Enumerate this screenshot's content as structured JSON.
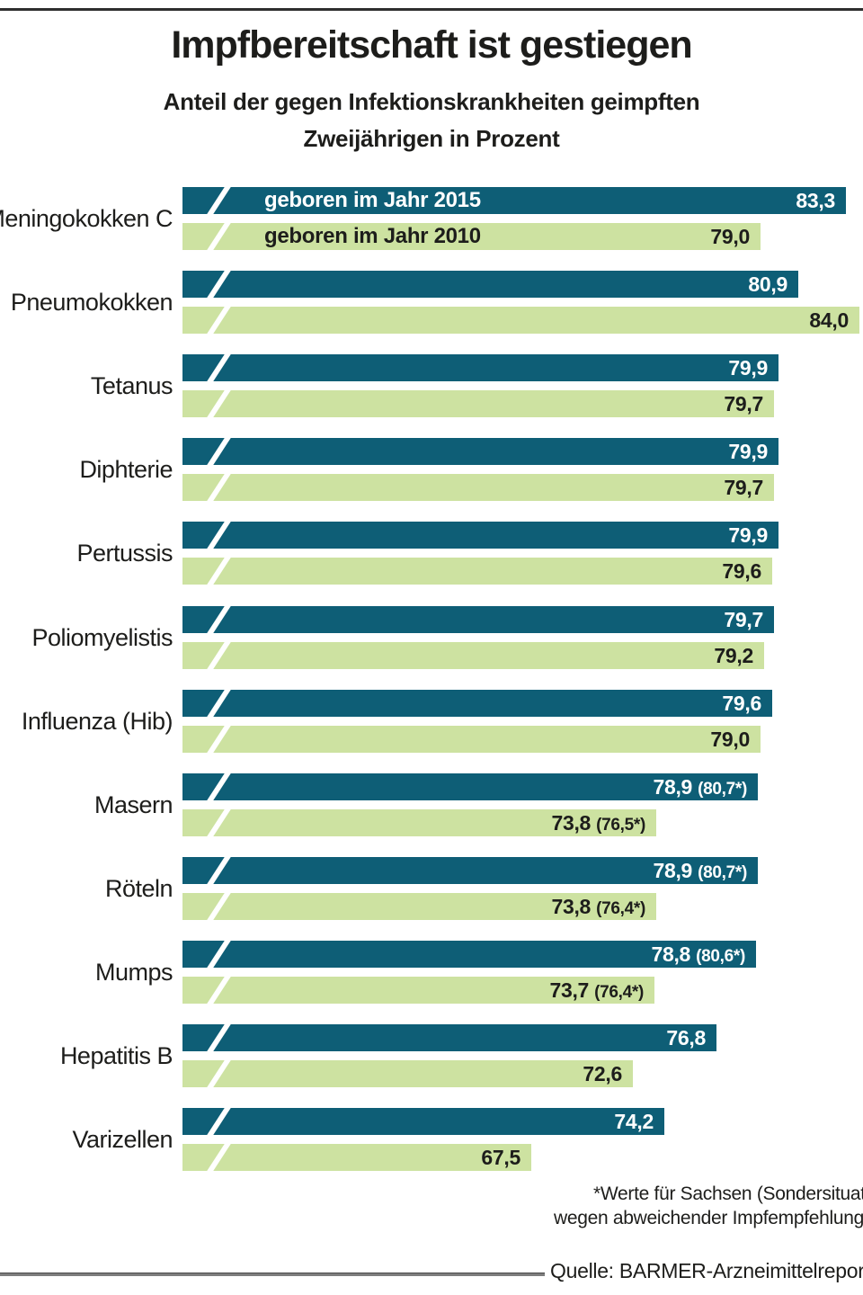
{
  "page": {
    "title": "Impfbereitschaft ist gestiegen",
    "subtitle_line1": "Anteil der gegen Infektionskrankheiten geimpften",
    "subtitle_line2": "Zweijährigen in Prozent",
    "footnote_line1": "*Werte für Sachsen (Sondersituat",
    "footnote_line2": "wegen abweichender Impfempfehlung",
    "source": "Quelle: BARMER-Arzneimittelreport"
  },
  "chart_data": {
    "type": "bar",
    "orientation": "horizontal",
    "title": "Impfbereitschaft ist gestiegen",
    "subtitle": "Anteil der gegen Infektionskrankheiten geimpften Zweijährigen in Prozent",
    "unit": "Prozent",
    "axis": {
      "min": 50,
      "max": 84.2,
      "broken_axis_marker": true,
      "gridlines": false,
      "tick_labels_shown": false
    },
    "legend_position": "inside-first-bars",
    "colors": {
      "series_2015": "#0e5e76",
      "series_2010": "#cde2a1",
      "value_on_dark": "#ffffff",
      "value_on_light": "#1d1d1b"
    },
    "categories": [
      "Meningokokken C",
      "Pneumokokken",
      "Tetanus",
      "Diphterie",
      "Pertussis",
      "Poliomyelistis",
      "Influenza (Hib)",
      "Masern",
      "Röteln",
      "Mumps",
      "Hepatitis B",
      "Varizellen"
    ],
    "series": [
      {
        "name": "geboren im Jahr 2015",
        "values": [
          83.3,
          80.9,
          79.9,
          79.9,
          79.9,
          79.7,
          79.6,
          78.9,
          78.9,
          78.8,
          76.8,
          74.2
        ],
        "labels": [
          "83,3",
          "80,9",
          "79,9",
          "79,9",
          "79,9",
          "79,7",
          "79,6",
          "78,9",
          "78,9",
          "78,8",
          "76,8",
          "74,2"
        ],
        "label_notes": [
          "",
          "",
          "",
          "",
          "",
          "",
          "",
          "(80,7*)",
          "(80,7*)",
          "(80,6*)",
          "",
          ""
        ]
      },
      {
        "name": "geboren im Jahr 2010",
        "values": [
          79.0,
          84.0,
          79.7,
          79.7,
          79.6,
          79.2,
          79.0,
          73.8,
          73.8,
          73.7,
          72.6,
          67.5
        ],
        "labels": [
          "79,0",
          "84,0",
          "79,7",
          "79,7",
          "79,6",
          "79,2",
          "79,0",
          "73,8",
          "73,8",
          "73,7",
          "72,6",
          "67,5"
        ],
        "label_notes": [
          "",
          "",
          "",
          "",
          "",
          "",
          "",
          "(76,5*)",
          "(76,4*)",
          "(76,4*)",
          "",
          ""
        ]
      }
    ]
  }
}
